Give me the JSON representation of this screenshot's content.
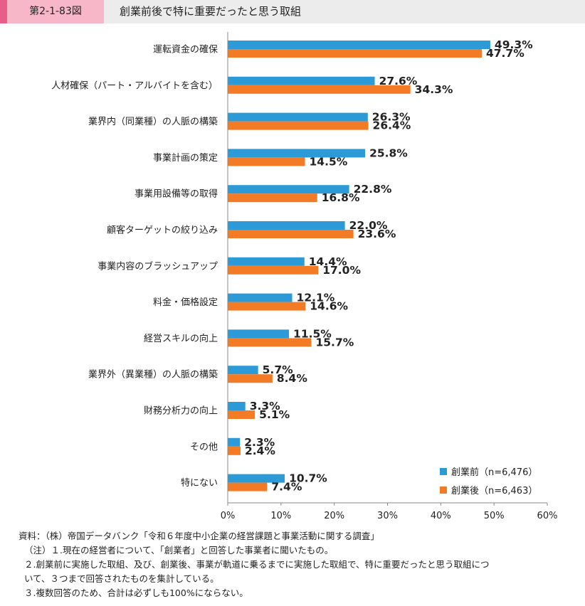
{
  "figure": {
    "number": "第2-1-83図",
    "title": "創業前後で特に重要だったと思う取組"
  },
  "colors": {
    "before": "#2b9ad6",
    "after": "#f47b26",
    "axis": "#888888",
    "accent": "#e85d8a"
  },
  "chart_data": {
    "type": "bar",
    "orientation": "horizontal",
    "categories": [
      "運転資金の確保",
      "人材確保（パート・アルバイトを含む）",
      "業界内（同業種）の人脈の構築",
      "事業計画の策定",
      "事業用設備等の取得",
      "顧客ターゲットの絞り込み",
      "事業内容のブラッシュアップ",
      "料金・価格設定",
      "経営スキルの向上",
      "業界外（異業種）の人脈の構築",
      "財務分析力の向上",
      "その他",
      "特にない"
    ],
    "series": [
      {
        "name": "創業前（n=6,476）",
        "values": [
          49.3,
          27.6,
          26.3,
          25.8,
          22.8,
          22.0,
          14.4,
          12.1,
          11.5,
          5.7,
          3.3,
          2.3,
          10.7
        ],
        "labels": [
          "49.3%",
          "27.6%",
          "26.3%",
          "25.8%",
          "22.8%",
          "22.0%",
          "14.4%",
          "12.1%",
          "11.5%",
          "5.7%",
          "3.3%",
          "2.3%",
          "10.7%"
        ]
      },
      {
        "name": "創業後（n=6,463）",
        "values": [
          47.7,
          34.3,
          26.4,
          14.5,
          16.8,
          23.6,
          17.0,
          14.6,
          15.7,
          8.4,
          5.1,
          2.4,
          7.4
        ],
        "labels": [
          "47.7%",
          "34.3%",
          "26.4%",
          "14.5%",
          "16.8%",
          "23.6%",
          "17.0%",
          "14.6%",
          "15.7%",
          "8.4%",
          "5.1%",
          "2.4%",
          "7.4%"
        ]
      }
    ],
    "xlim": [
      0,
      60
    ],
    "xticks": [
      "0%",
      "10%",
      "20%",
      "30%",
      "40%",
      "50%",
      "60%"
    ],
    "grid": false,
    "legend": "bottom-right"
  },
  "notes": [
    "資料：（株）帝国データバンク「令和６年度中小企業の経営課題と事業活動に関する調査」",
    "（注）１.現在の経営者について、「創業者」と回答した事業者に聞いたもの。",
    "２.創業前に実施した取組、及び、創業後、事業が軌道に乗るまでに実施した取組で、特に重要だったと思う取組につ",
    "いて、３つまで回答されたものを集計している。",
    "３.複数回答のため、合計は必ずしも100%にならない。"
  ]
}
